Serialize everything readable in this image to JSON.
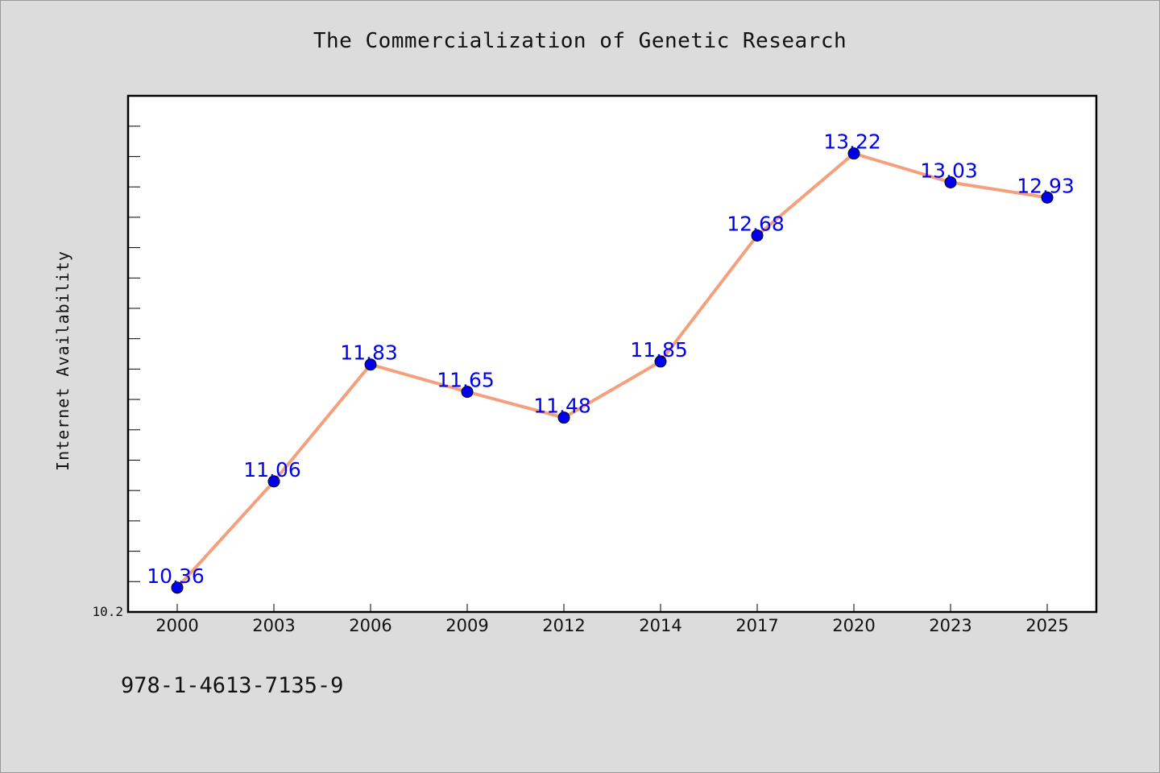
{
  "colors": {
    "background": "#dcdcdc",
    "plot_background": "#ffffff",
    "line": "#f4a07c",
    "marker": "#0000ee",
    "data_label": "#0000ee",
    "text": "#111111"
  },
  "footer": {
    "code": "978-1-4613-7135-9"
  },
  "chart_data": {
    "type": "line",
    "title": "The Commercialization of Genetic Research",
    "xlabel": "",
    "ylabel": "Internet Availability",
    "categories": [
      "2000",
      "2003",
      "2006",
      "2009",
      "2012",
      "2014",
      "2017",
      "2020",
      "2023",
      "2025"
    ],
    "series": [
      {
        "values": [
          10.36,
          11.06,
          11.83,
          11.65,
          11.48,
          11.85,
          12.68,
          13.22,
          13.03,
          12.93
        ],
        "data_labels": [
          "10.36",
          "11.06",
          "11.83",
          "11.65",
          "11.48",
          "11.85",
          "12.68",
          "13.22",
          "13.03",
          "12.93"
        ]
      }
    ],
    "ylim": [
      10.2,
      13.6
    ],
    "y_tick_labels": [
      "10.2"
    ],
    "grid": false,
    "legend": "none"
  }
}
